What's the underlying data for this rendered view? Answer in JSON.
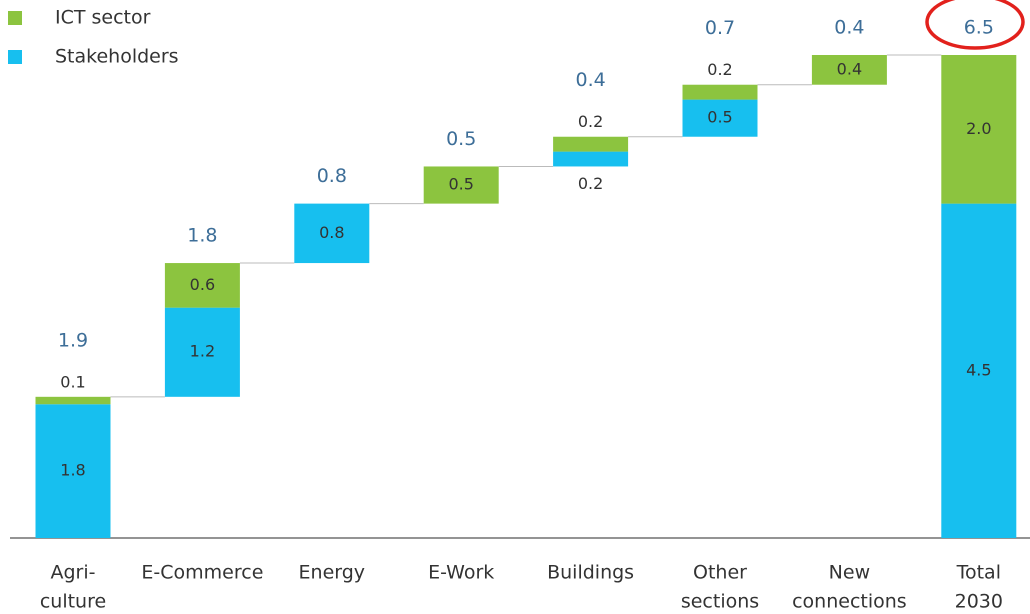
{
  "chart_data": {
    "type": "waterfall",
    "categories": [
      [
        "Agri-",
        "culture"
      ],
      [
        "E-Commerce"
      ],
      [
        "Energy"
      ],
      [
        "E-Work"
      ],
      [
        "Buildings"
      ],
      [
        "Other",
        "sections"
      ],
      [
        "New",
        "connections"
      ],
      [
        "Total",
        "2030"
      ]
    ],
    "series": [
      {
        "name": "ICT sector",
        "color": "#8cc43f",
        "values": [
          0.1,
          0.6,
          null,
          0.5,
          0.2,
          0.2,
          0.4,
          2.0
        ],
        "value_labels": [
          null,
          null,
          null,
          null,
          null,
          null,
          null,
          "2.0"
        ]
      },
      {
        "name": "Stakeholders",
        "color": "#17bfef",
        "values": [
          1.8,
          1.2,
          0.8,
          null,
          0.2,
          0.5,
          null,
          4.5
        ]
      }
    ],
    "totals": [
      1.9,
      1.8,
      0.8,
      0.5,
      0.4,
      0.7,
      0.4,
      6.5
    ],
    "sum_last": true,
    "ylim": [
      0,
      6.5
    ],
    "legend": "top-left"
  }
}
